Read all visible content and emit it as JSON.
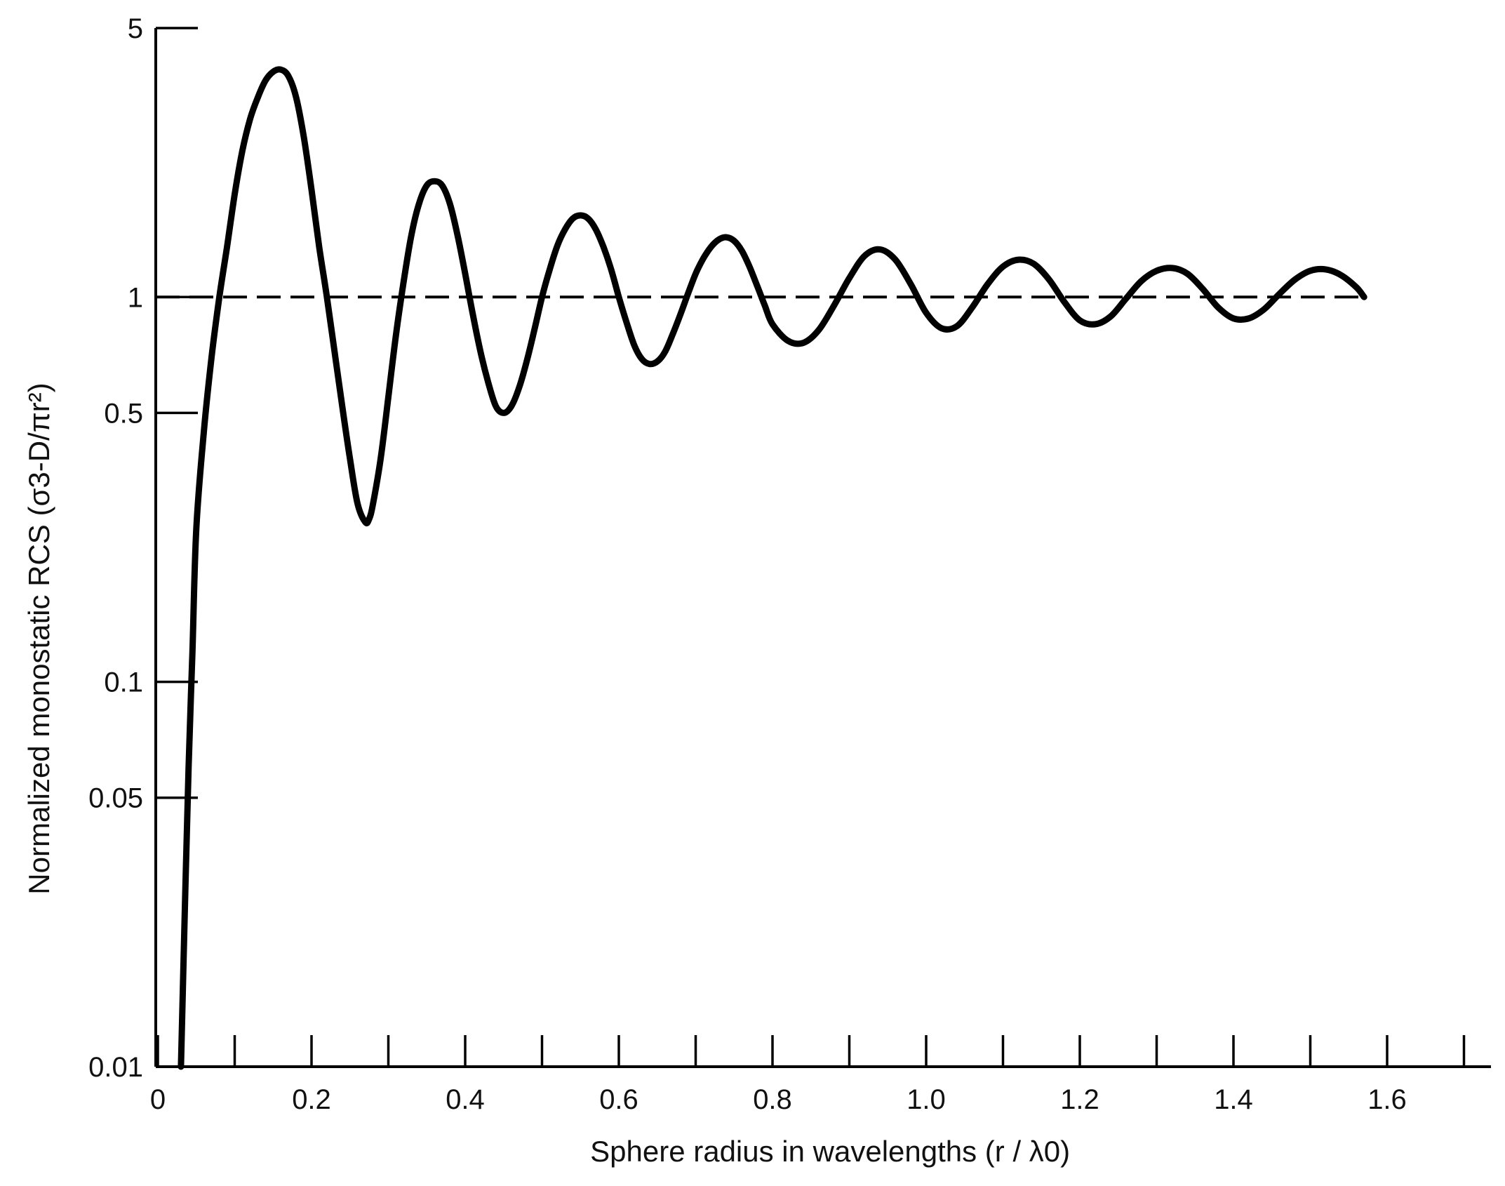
{
  "chart_data": {
    "type": "line",
    "xlabel": "Sphere radius in wavelengths (r / λ0)",
    "ylabel": "Normalized monostatic RCS (σ3-D/πr²)",
    "xlim": [
      0,
      1.75
    ],
    "ylim": [
      0.01,
      5
    ],
    "y_scale": "log",
    "grid": false,
    "x_ticks": [
      0,
      0.1,
      0.2,
      0.3,
      0.4,
      0.5,
      0.6,
      0.7,
      0.8,
      0.9,
      1.0,
      1.1,
      1.2,
      1.3,
      1.4,
      1.5,
      1.6,
      1.7
    ],
    "x_tick_labels": [
      {
        "value": 0,
        "label": "0"
      },
      {
        "value": 0.2,
        "label": "0.2"
      },
      {
        "value": 0.4,
        "label": "0.4"
      },
      {
        "value": 0.6,
        "label": "0.6"
      },
      {
        "value": 0.8,
        "label": "0.8"
      },
      {
        "value": 1.0,
        "label": "1.0"
      },
      {
        "value": 1.2,
        "label": "1.2"
      },
      {
        "value": 1.4,
        "label": "1.4"
      },
      {
        "value": 1.6,
        "label": "1.6"
      }
    ],
    "y_ticks": [
      {
        "value": 5,
        "label": "5"
      },
      {
        "value": 1,
        "label": "1"
      },
      {
        "value": 0.5,
        "label": "0.5"
      },
      {
        "value": 0.1,
        "label": "0.1"
      },
      {
        "value": 0.05,
        "label": "0.05"
      },
      {
        "value": 0.01,
        "label": "0.01"
      }
    ],
    "reference_line": {
      "y": 1,
      "style": "dashed"
    },
    "series": [
      {
        "style": "solid",
        "x": [
          0.03,
          0.035,
          0.04,
          0.045,
          0.05,
          0.06,
          0.07,
          0.08,
          0.09,
          0.1,
          0.11,
          0.12,
          0.13,
          0.14,
          0.15,
          0.16,
          0.17,
          0.18,
          0.19,
          0.2,
          0.21,
          0.22,
          0.23,
          0.24,
          0.25,
          0.26,
          0.27,
          0.275,
          0.28,
          0.29,
          0.3,
          0.31,
          0.32,
          0.33,
          0.34,
          0.35,
          0.36,
          0.37,
          0.38,
          0.39,
          0.4,
          0.41,
          0.42,
          0.43,
          0.44,
          0.45,
          0.46,
          0.47,
          0.48,
          0.49,
          0.5,
          0.51,
          0.52,
          0.53,
          0.54,
          0.55,
          0.56,
          0.57,
          0.58,
          0.59,
          0.6,
          0.61,
          0.62,
          0.63,
          0.64,
          0.65,
          0.66,
          0.67,
          0.68,
          0.69,
          0.7,
          0.71,
          0.72,
          0.73,
          0.74,
          0.75,
          0.76,
          0.77,
          0.78,
          0.79,
          0.8,
          0.82,
          0.84,
          0.86,
          0.88,
          0.9,
          0.92,
          0.94,
          0.96,
          0.98,
          1.0,
          1.02,
          1.04,
          1.06,
          1.08,
          1.1,
          1.12,
          1.14,
          1.16,
          1.18,
          1.2,
          1.22,
          1.24,
          1.26,
          1.28,
          1.3,
          1.32,
          1.34,
          1.36,
          1.38,
          1.4,
          1.42,
          1.44,
          1.46,
          1.48,
          1.5,
          1.52,
          1.54,
          1.56,
          1.57
        ],
        "values": [
          0.01,
          0.025,
          0.06,
          0.12,
          0.25,
          0.45,
          0.7,
          1.0,
          1.35,
          1.85,
          2.4,
          2.9,
          3.3,
          3.65,
          3.85,
          3.9,
          3.75,
          3.3,
          2.6,
          1.9,
          1.35,
          1.0,
          0.72,
          0.52,
          0.38,
          0.29,
          0.26,
          0.265,
          0.29,
          0.38,
          0.55,
          0.8,
          1.1,
          1.45,
          1.75,
          1.95,
          2.0,
          1.95,
          1.75,
          1.45,
          1.15,
          0.9,
          0.72,
          0.6,
          0.52,
          0.5,
          0.52,
          0.58,
          0.68,
          0.82,
          1.0,
          1.18,
          1.36,
          1.5,
          1.6,
          1.63,
          1.6,
          1.5,
          1.35,
          1.18,
          1.0,
          0.86,
          0.75,
          0.69,
          0.67,
          0.68,
          0.72,
          0.8,
          0.9,
          1.02,
          1.15,
          1.26,
          1.35,
          1.41,
          1.43,
          1.4,
          1.32,
          1.2,
          1.07,
          0.95,
          0.85,
          0.77,
          0.76,
          0.82,
          0.95,
          1.12,
          1.28,
          1.33,
          1.25,
          1.08,
          0.91,
          0.83,
          0.84,
          0.94,
          1.08,
          1.2,
          1.25,
          1.22,
          1.11,
          0.97,
          0.87,
          0.85,
          0.89,
          0.99,
          1.1,
          1.17,
          1.19,
          1.15,
          1.05,
          0.94,
          0.88,
          0.88,
          0.93,
          1.02,
          1.11,
          1.17,
          1.18,
          1.14,
          1.06,
          1.0
        ]
      }
    ]
  }
}
